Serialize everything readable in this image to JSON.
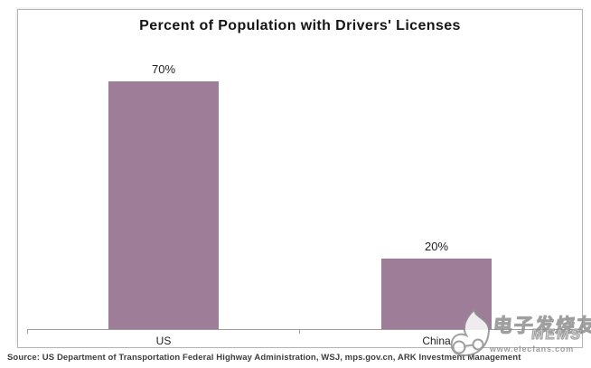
{
  "chart_data": {
    "type": "bar",
    "title": "Percent of Population with Drivers' Licenses",
    "categories": [
      "US",
      "China"
    ],
    "values": [
      70,
      20
    ],
    "value_labels": [
      "70%",
      "20%"
    ],
    "xlabel": "",
    "ylabel": "",
    "ylim": [
      0,
      75
    ],
    "grid": false,
    "legend": false,
    "bar_color": "#9d7d98",
    "axis_color": "#9c9c9c"
  },
  "source": "Source: US Department of Transportation Federal Highway Administration, WSJ, mps.gov.cn, ARK Investment Management",
  "watermark": {
    "brand_cn": "电子发烧友",
    "brand_sub": "MEMS",
    "url": "www.elecfans.com",
    "logo_icon": "elecfans-drop-logo"
  }
}
